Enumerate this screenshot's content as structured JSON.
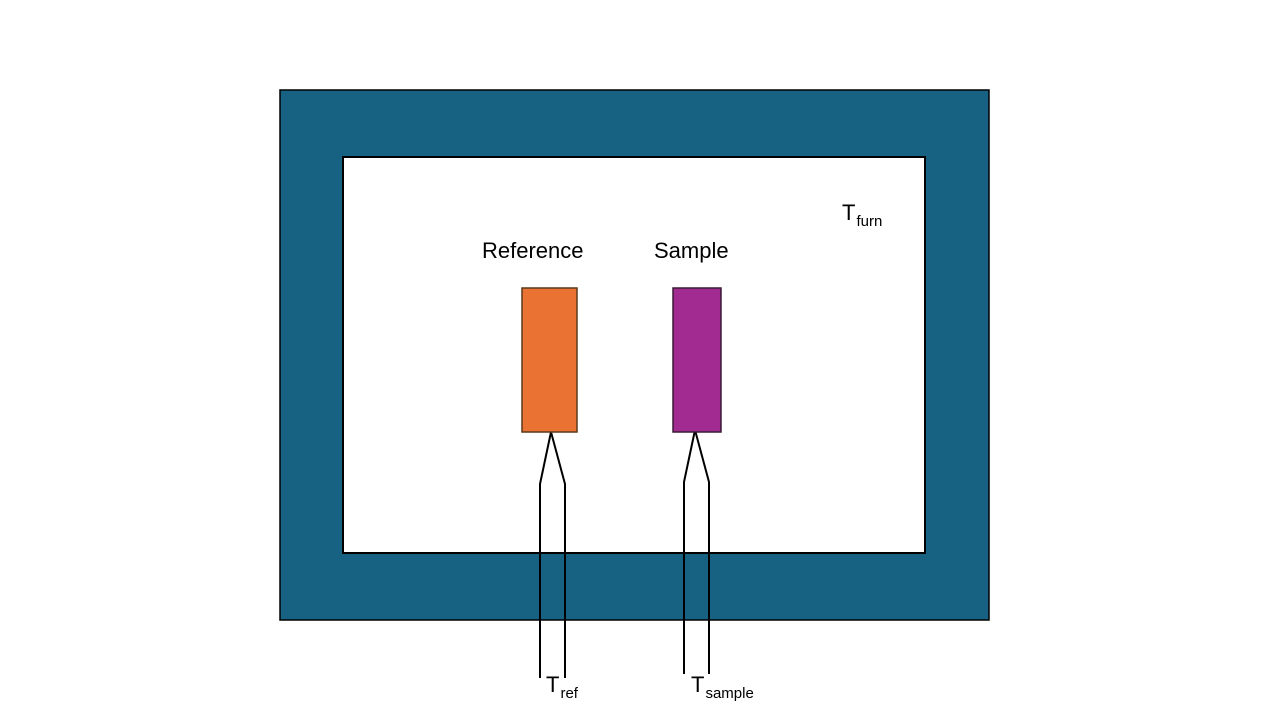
{
  "colors": {
    "furnace_wall": "#176183",
    "reference": "#ea7233",
    "sample": "#a22b92",
    "outline": "#000000",
    "background": "#ffffff"
  },
  "labels": {
    "reference": "Reference",
    "sample": "Sample",
    "t_furn": {
      "base": "T",
      "sub": "furn"
    },
    "t_ref": {
      "base": "T",
      "sub": "ref"
    },
    "t_sample": {
      "base": "T",
      "sub": "sample"
    }
  }
}
